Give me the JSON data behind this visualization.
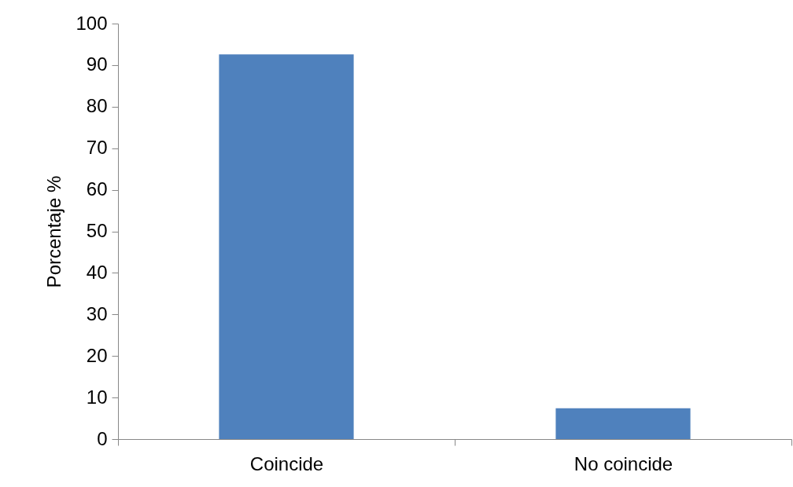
{
  "chart_data": {
    "type": "bar",
    "ylabel": "Porcentaje %",
    "categories": [
      "Coincide",
      "No coincide"
    ],
    "series": [
      {
        "color": "#4f81bd",
        "values": [
          92.6,
          7.4
        ]
      }
    ],
    "ylim": [
      0,
      100
    ],
    "yticks": [
      0,
      10,
      20,
      30,
      40,
      50,
      60,
      70,
      80,
      90,
      100
    ],
    "grid": false,
    "legend": false
  }
}
